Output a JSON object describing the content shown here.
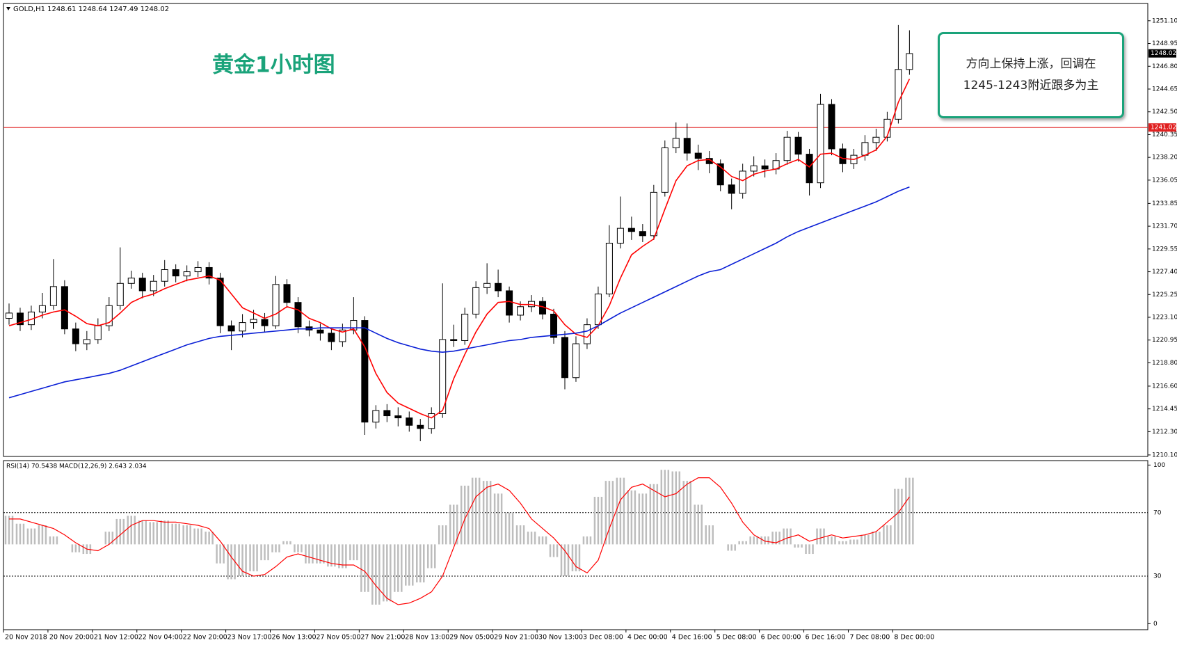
{
  "header": "GOLD,H1  1248.61 1248.64 1247.49 1248.02",
  "chart_data": {
    "type": "candlestick",
    "title": "黄金1小时图",
    "annotation": [
      "方向上保持上涨，回调在",
      "1245-1243附近跟多为主"
    ],
    "ylim": [
      1209.96,
      1252.73
    ],
    "yticks": [
      {
        "value": 1251.1,
        "label": "1251.10"
      },
      {
        "value": 1248.95,
        "label": "1248.95"
      },
      {
        "value": 1246.8,
        "label": "1246.80"
      },
      {
        "value": 1244.65,
        "label": "1244.65"
      },
      {
        "value": 1242.5,
        "label": "1242.50"
      },
      {
        "value": 1240.35,
        "label": "1240.35"
      },
      {
        "value": 1238.2,
        "label": "1238.20"
      },
      {
        "value": 1236.05,
        "label": "1236.05"
      },
      {
        "value": 1233.85,
        "label": "1233.85"
      },
      {
        "value": 1231.7,
        "label": "1231.70"
      },
      {
        "value": 1229.55,
        "label": "1229.55"
      },
      {
        "value": 1227.4,
        "label": "1227.40"
      },
      {
        "value": 1225.25,
        "label": "1225.25"
      },
      {
        "value": 1223.1,
        "label": "1223.10"
      },
      {
        "value": 1220.95,
        "label": "1220.95"
      },
      {
        "value": 1218.8,
        "label": "1218.80"
      },
      {
        "value": 1216.6,
        "label": "1216.60"
      },
      {
        "value": 1214.45,
        "label": "1214.45"
      },
      {
        "value": 1212.3,
        "label": "1212.30"
      },
      {
        "value": 1210.1,
        "label": "1210.10"
      }
    ],
    "hline": {
      "value": 1241.02,
      "label": "1241.02",
      "color": "#e02020"
    },
    "last_price": {
      "value": 1248.02,
      "label": "1248.02"
    },
    "xticks": [
      {
        "value": 0,
        "label": "20 Nov 2018"
      },
      {
        "value": 4,
        "label": "20 Nov 20:00"
      },
      {
        "value": 8,
        "label": "21 Nov 12:00"
      },
      {
        "value": 12,
        "label": "22 Nov 04:00"
      },
      {
        "value": 16,
        "label": "22 Nov 20:00"
      },
      {
        "value": 20,
        "label": "23 Nov 17:00"
      },
      {
        "value": 24,
        "label": "26 Nov 13:00"
      },
      {
        "value": 28,
        "label": "27 Nov 05:00"
      },
      {
        "value": 32,
        "label": "27 Nov 21:00"
      },
      {
        "value": 36,
        "label": "28 Nov 13:00"
      },
      {
        "value": 40,
        "label": "29 Nov 05:00"
      },
      {
        "value": 44,
        "label": "29 Nov 21:00"
      },
      {
        "value": 48,
        "label": "30 Nov 13:00"
      },
      {
        "value": 52,
        "label": "3 Dec 08:00"
      },
      {
        "value": 56,
        "label": "4 Dec 00:00"
      },
      {
        "value": 60,
        "label": "4 Dec 16:00"
      },
      {
        "value": 64,
        "label": "5 Dec 08:00"
      },
      {
        "value": 68,
        "label": "6 Dec 00:00"
      },
      {
        "value": 72,
        "label": "6 Dec 16:00"
      },
      {
        "value": 76,
        "label": "7 Dec 08:00"
      },
      {
        "value": 80,
        "label": "8 Dec 00:00"
      }
    ],
    "ohlc": [
      [
        1223.0,
        1224.4,
        1222.4,
        1223.5
      ],
      [
        1223.5,
        1224.0,
        1221.8,
        1222.4
      ],
      [
        1222.4,
        1224.2,
        1221.9,
        1223.6
      ],
      [
        1223.6,
        1225.4,
        1223.0,
        1224.2
      ],
      [
        1224.2,
        1228.6,
        1223.8,
        1226.0
      ],
      [
        1226.0,
        1226.6,
        1221.5,
        1222.0
      ],
      [
        1222.0,
        1222.6,
        1219.9,
        1220.6
      ],
      [
        1220.6,
        1221.8,
        1220.0,
        1221.0
      ],
      [
        1221.0,
        1223.0,
        1220.6,
        1222.3
      ],
      [
        1222.3,
        1225.0,
        1221.8,
        1224.2
      ],
      [
        1224.2,
        1229.7,
        1223.8,
        1226.3
      ],
      [
        1226.3,
        1227.5,
        1225.8,
        1226.8
      ],
      [
        1226.8,
        1227.3,
        1224.9,
        1225.6
      ],
      [
        1225.6,
        1227.1,
        1225.1,
        1226.5
      ],
      [
        1226.5,
        1228.5,
        1226.0,
        1227.6
      ],
      [
        1227.6,
        1228.1,
        1226.4,
        1227.0
      ],
      [
        1227.0,
        1228.0,
        1226.5,
        1227.4
      ],
      [
        1227.4,
        1228.4,
        1226.9,
        1227.8
      ],
      [
        1227.8,
        1228.3,
        1226.2,
        1226.8
      ],
      [
        1226.8,
        1227.3,
        1221.6,
        1222.3
      ],
      [
        1222.3,
        1222.8,
        1220.0,
        1221.8
      ],
      [
        1221.8,
        1223.4,
        1221.2,
        1222.6
      ],
      [
        1222.6,
        1223.8,
        1222.0,
        1222.9
      ],
      [
        1222.9,
        1223.5,
        1221.7,
        1222.3
      ],
      [
        1222.3,
        1227.0,
        1222.0,
        1226.2
      ],
      [
        1226.2,
        1226.7,
        1224.0,
        1224.5
      ],
      [
        1224.5,
        1225.0,
        1221.6,
        1222.2
      ],
      [
        1222.2,
        1222.8,
        1221.3,
        1221.9
      ],
      [
        1221.9,
        1222.5,
        1220.9,
        1221.6
      ],
      [
        1221.6,
        1222.0,
        1220.0,
        1220.8
      ],
      [
        1220.8,
        1222.5,
        1220.3,
        1221.9
      ],
      [
        1221.9,
        1225.0,
        1221.5,
        1222.8
      ],
      [
        1222.8,
        1223.2,
        1212.0,
        1213.2
      ],
      [
        1213.2,
        1214.8,
        1212.6,
        1214.3
      ],
      [
        1214.3,
        1214.9,
        1213.2,
        1213.8
      ],
      [
        1213.8,
        1214.6,
        1212.8,
        1213.6
      ],
      [
        1213.6,
        1214.2,
        1212.3,
        1212.9
      ],
      [
        1212.9,
        1213.5,
        1211.4,
        1212.6
      ],
      [
        1212.6,
        1214.6,
        1212.1,
        1214.0
      ],
      [
        1214.0,
        1226.3,
        1213.6,
        1221.0
      ],
      [
        1221.0,
        1222.4,
        1220.3,
        1220.9
      ],
      [
        1220.9,
        1224.0,
        1220.5,
        1223.4
      ],
      [
        1223.4,
        1226.5,
        1223.0,
        1225.9
      ],
      [
        1225.9,
        1228.2,
        1225.3,
        1226.3
      ],
      [
        1226.3,
        1227.6,
        1225.0,
        1225.6
      ],
      [
        1225.6,
        1226.0,
        1222.6,
        1223.3
      ],
      [
        1223.3,
        1224.6,
        1222.8,
        1224.1
      ],
      [
        1224.1,
        1225.2,
        1223.6,
        1224.6
      ],
      [
        1224.6,
        1225.0,
        1222.9,
        1223.4
      ],
      [
        1223.4,
        1223.9,
        1220.6,
        1221.2
      ],
      [
        1221.2,
        1221.8,
        1216.3,
        1217.4
      ],
      [
        1217.4,
        1221.3,
        1217.0,
        1220.6
      ],
      [
        1220.6,
        1223.0,
        1220.1,
        1222.4
      ],
      [
        1222.4,
        1226.0,
        1222.0,
        1225.3
      ],
      [
        1225.3,
        1231.8,
        1225.0,
        1230.1
      ],
      [
        1230.1,
        1234.5,
        1229.6,
        1231.5
      ],
      [
        1231.5,
        1232.6,
        1230.4,
        1231.2
      ],
      [
        1231.2,
        1231.9,
        1230.2,
        1230.8
      ],
      [
        1230.8,
        1235.6,
        1230.4,
        1234.9
      ],
      [
        1234.9,
        1239.8,
        1234.5,
        1239.1
      ],
      [
        1239.1,
        1241.5,
        1238.6,
        1240.0
      ],
      [
        1240.0,
        1241.4,
        1237.9,
        1238.6
      ],
      [
        1238.6,
        1239.4,
        1237.0,
        1238.1
      ],
      [
        1238.1,
        1238.8,
        1236.7,
        1237.6
      ],
      [
        1237.6,
        1238.0,
        1235.0,
        1235.6
      ],
      [
        1235.6,
        1236.2,
        1233.3,
        1234.8
      ],
      [
        1234.8,
        1237.6,
        1234.3,
        1236.9
      ],
      [
        1236.9,
        1238.3,
        1236.4,
        1237.4
      ],
      [
        1237.4,
        1238.0,
        1236.3,
        1237.1
      ],
      [
        1237.1,
        1238.6,
        1236.6,
        1237.9
      ],
      [
        1237.9,
        1240.7,
        1237.5,
        1240.1
      ],
      [
        1240.1,
        1240.6,
        1237.8,
        1238.5
      ],
      [
        1238.5,
        1239.0,
        1234.6,
        1235.8
      ],
      [
        1235.8,
        1244.2,
        1235.3,
        1243.2
      ],
      [
        1243.2,
        1243.7,
        1238.4,
        1239.0
      ],
      [
        1239.0,
        1239.5,
        1236.8,
        1237.6
      ],
      [
        1237.6,
        1239.0,
        1237.1,
        1238.4
      ],
      [
        1238.4,
        1240.3,
        1237.9,
        1239.6
      ],
      [
        1239.6,
        1240.9,
        1238.8,
        1240.1
      ],
      [
        1240.1,
        1242.5,
        1239.7,
        1241.8
      ],
      [
        1241.8,
        1250.7,
        1241.4,
        1246.5
      ],
      [
        1246.5,
        1250.2,
        1246.0,
        1248.0
      ]
    ],
    "ma": [
      {
        "color": "#ff0000",
        "values": [
          1222.3,
          1222.6,
          1222.9,
          1223.3,
          1223.6,
          1223.8,
          1223.2,
          1222.5,
          1222.3,
          1222.6,
          1223.5,
          1224.5,
          1225.0,
          1225.3,
          1225.8,
          1226.2,
          1226.6,
          1226.8,
          1227.0,
          1226.6,
          1225.3,
          1224.0,
          1223.5,
          1223.0,
          1223.4,
          1224.1,
          1223.8,
          1223.0,
          1222.6,
          1222.0,
          1221.7,
          1222.0,
          1220.3,
          1217.8,
          1216.0,
          1215.0,
          1214.5,
          1214.0,
          1213.6,
          1214.3,
          1217.3,
          1219.6,
          1221.7,
          1223.4,
          1224.5,
          1224.6,
          1224.3,
          1224.3,
          1224.1,
          1223.7,
          1222.4,
          1221.5,
          1221.2,
          1222.3,
          1224.2,
          1226.8,
          1229.0,
          1229.8,
          1230.5,
          1233.3,
          1236.0,
          1237.4,
          1237.9,
          1238.0,
          1237.3,
          1236.4,
          1236.0,
          1236.6,
          1236.9,
          1237.1,
          1237.6,
          1238.0,
          1237.3,
          1238.5,
          1238.6,
          1238.1,
          1238.0,
          1238.4,
          1238.9,
          1240.2,
          1243.4,
          1245.6
        ]
      },
      {
        "color": "#0a1fd6",
        "values": [
          1215.5,
          1215.8,
          1216.1,
          1216.4,
          1216.7,
          1217.0,
          1217.2,
          1217.4,
          1217.6,
          1217.8,
          1218.1,
          1218.5,
          1218.9,
          1219.3,
          1219.7,
          1220.1,
          1220.5,
          1220.8,
          1221.1,
          1221.3,
          1221.4,
          1221.5,
          1221.6,
          1221.7,
          1221.8,
          1221.9,
          1222.0,
          1222.0,
          1222.1,
          1222.1,
          1222.1,
          1222.1,
          1222.1,
          1221.6,
          1221.1,
          1220.7,
          1220.4,
          1220.1,
          1219.9,
          1219.8,
          1219.9,
          1220.1,
          1220.3,
          1220.5,
          1220.7,
          1220.9,
          1221.0,
          1221.2,
          1221.3,
          1221.4,
          1221.5,
          1221.6,
          1221.8,
          1222.3,
          1222.9,
          1223.5,
          1224.0,
          1224.5,
          1225.0,
          1225.5,
          1226.0,
          1226.5,
          1227.0,
          1227.4,
          1227.6,
          1228.1,
          1228.6,
          1229.1,
          1229.6,
          1230.1,
          1230.7,
          1231.2,
          1231.6,
          1232.0,
          1232.4,
          1232.8,
          1233.2,
          1233.6,
          1234.0,
          1234.5,
          1235.0,
          1235.4
        ]
      }
    ],
    "indicator": {
      "type": "bar",
      "label": "RSI(14) 70.5438  MACD(12,26,9) 2.643 2.034",
      "color": "#bdbdbd",
      "ylim": [
        -3.8,
        102.8
      ],
      "yticks": [
        0,
        30,
        70,
        100
      ],
      "values": [
        68,
        63,
        60,
        62,
        55,
        50,
        45,
        44,
        50,
        58,
        66,
        68,
        65,
        64,
        65,
        63,
        62,
        60,
        58,
        38,
        28,
        30,
        33,
        40,
        45,
        52,
        45,
        38,
        38,
        36,
        35,
        40,
        20,
        12,
        14,
        20,
        24,
        26,
        35,
        62,
        75,
        87,
        92,
        90,
        82,
        70,
        62,
        58,
        55,
        42,
        30,
        33,
        55,
        80,
        90,
        92,
        84,
        82,
        88,
        97,
        96,
        90,
        75,
        62,
        50,
        46,
        52,
        55,
        55,
        58,
        60,
        48,
        44,
        60,
        55,
        52,
        53,
        56,
        58,
        62,
        85,
        92
      ],
      "line": {
        "color": "#ff0000",
        "values": [
          66,
          66,
          64,
          62,
          60,
          56,
          51,
          47,
          46,
          50,
          56,
          62,
          65,
          65,
          64,
          64,
          63,
          62,
          60,
          52,
          42,
          33,
          30,
          31,
          36,
          42,
          44,
          42,
          40,
          38,
          37,
          37,
          33,
          24,
          16,
          12,
          13,
          16,
          20,
          30,
          48,
          66,
          80,
          86,
          88,
          84,
          76,
          66,
          60,
          54,
          46,
          36,
          32,
          40,
          60,
          78,
          86,
          88,
          84,
          80,
          82,
          88,
          92,
          92,
          86,
          76,
          64,
          56,
          52,
          51,
          54,
          56,
          52,
          54,
          56,
          54,
          55,
          56,
          58,
          64,
          70,
          80
        ]
      }
    }
  }
}
